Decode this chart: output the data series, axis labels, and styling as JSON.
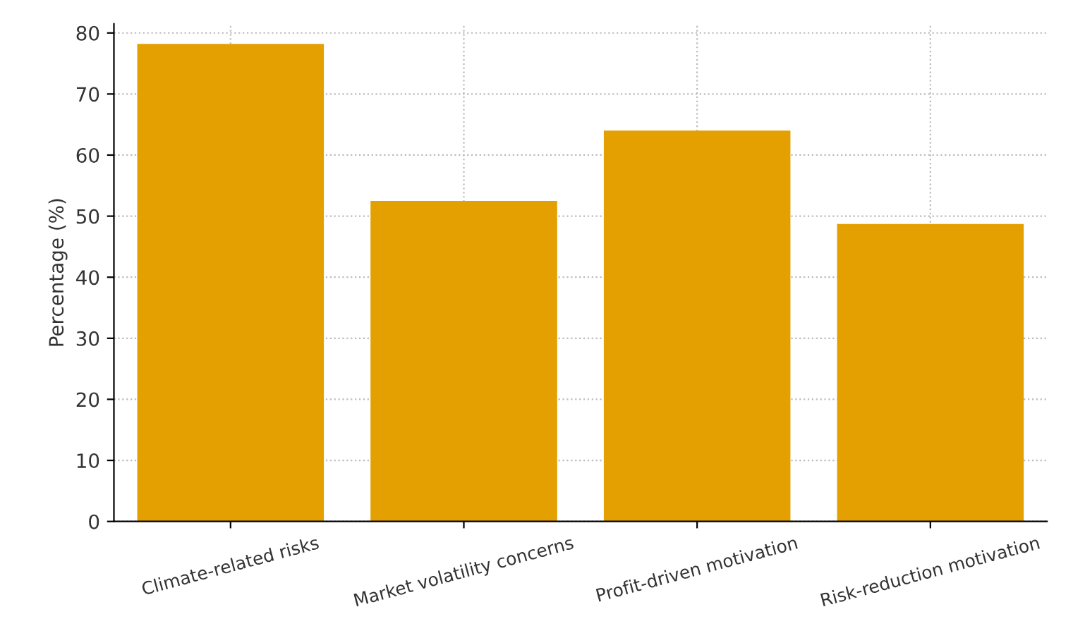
{
  "chart_data": {
    "type": "bar",
    "ylabel": "Percentage (%)",
    "categories": [
      "Climate-related risks",
      "Market volatility concerns",
      "Profit-driven motivation",
      "Risk-reduction motivation"
    ],
    "values": [
      78.2,
      52.5,
      64.0,
      48.7
    ],
    "color": "#e3a000",
    "ylim": [
      0,
      81.5
    ],
    "yticks": [
      0,
      10,
      20,
      30,
      40,
      50,
      60,
      70,
      80
    ],
    "grid": true
  }
}
